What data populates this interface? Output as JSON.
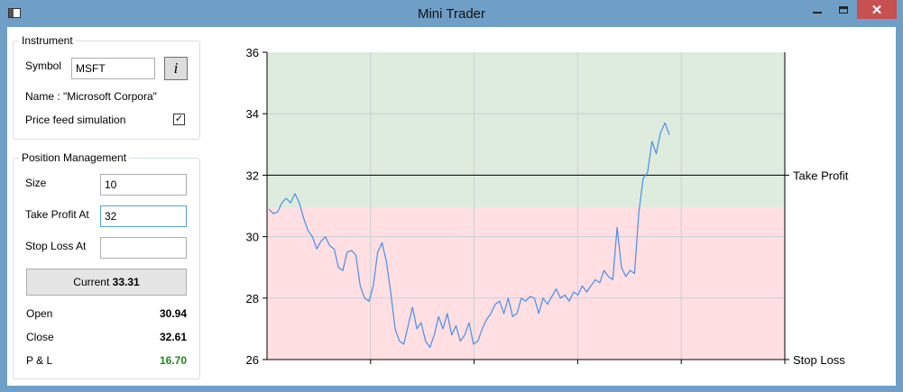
{
  "window": {
    "title": "Mini Trader"
  },
  "instrument": {
    "legend": "Instrument",
    "symbol_label": "Symbol",
    "symbol_value": "MSFT",
    "info_glyph": "i",
    "name_text": "Name : \"Microsoft Corpora\"",
    "price_feed_label": "Price feed simulation",
    "price_feed_checked": true
  },
  "position": {
    "legend": "Position Management",
    "size_label": "Size",
    "size_value": "10",
    "take_profit_label": "Take Profit At",
    "take_profit_value": "32",
    "stop_loss_label": "Stop Loss At",
    "stop_loss_value": "",
    "current_prefix": "Current ",
    "current_value": "33.31",
    "open_label": "Open",
    "open_value": "30.94",
    "close_label": "Close",
    "close_value": "32.61",
    "pl_label": "P & L",
    "pl_value": "16.70"
  },
  "colors": {
    "profit_zone": "#deecde",
    "loss_zone": "#ffdfe2",
    "series": "#4a8ee8",
    "pl_positive": "#1a8a1a",
    "window_frame": "#6f9fc7"
  },
  "chart_data": {
    "type": "line",
    "ylim": [
      26,
      36
    ],
    "yticks": [
      26,
      28,
      30,
      32,
      34,
      36
    ],
    "xticks_count": 5,
    "bands": [
      {
        "from": 30.94,
        "to": 36,
        "color": "#deecde"
      },
      {
        "from": 26,
        "to": 30.94,
        "color": "#ffdfe2"
      }
    ],
    "lines": [
      {
        "value": 32,
        "label": "Take Profit"
      },
      {
        "value": 26,
        "label": "Stop Loss"
      }
    ],
    "series": [
      {
        "values": [
          30.9,
          30.75,
          30.8,
          31.1,
          31.25,
          31.1,
          31.4,
          31.1,
          30.6,
          30.2,
          30.0,
          29.6,
          29.85,
          30.0,
          29.7,
          29.6,
          29.0,
          28.9,
          29.5,
          29.55,
          29.4,
          28.4,
          28.0,
          27.9,
          28.4,
          29.5,
          29.8,
          29.2,
          28.2,
          27.0,
          26.6,
          26.5,
          27.1,
          27.7,
          27.0,
          27.2,
          26.6,
          26.4,
          26.8,
          27.4,
          27.0,
          27.5,
          26.8,
          27.1,
          26.6,
          26.8,
          27.2,
          26.5,
          26.6,
          27.0,
          27.3,
          27.5,
          27.8,
          27.9,
          27.5,
          28.0,
          27.4,
          27.5,
          28.0,
          27.9,
          28.05,
          28.0,
          27.5,
          28.0,
          27.8,
          28.05,
          28.3,
          28.0,
          28.1,
          27.9,
          28.2,
          28.1,
          28.4,
          28.2,
          28.4,
          28.6,
          28.5,
          28.9,
          28.7,
          28.6,
          30.3,
          29.0,
          28.7,
          28.9,
          28.8,
          30.8,
          31.9,
          32.1,
          33.1,
          32.7,
          33.4,
          33.7,
          33.31
        ]
      }
    ]
  }
}
